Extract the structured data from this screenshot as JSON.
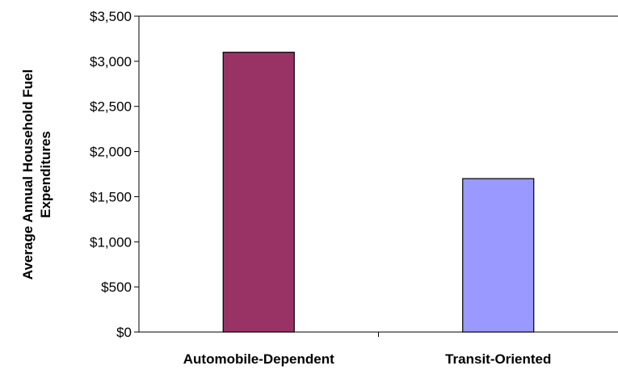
{
  "chart_data": {
    "type": "bar",
    "title": "",
    "xlabel": "",
    "ylabel_lines": [
      "Average Annual Household Fuel",
      "Expenditures"
    ],
    "categories": [
      "Automobile-Dependent",
      "Transit-Oriented"
    ],
    "values": [
      3100,
      1700
    ],
    "bar_colors": [
      "#993366",
      "#9999ff"
    ],
    "ylim": [
      0,
      3500
    ],
    "yticks": [
      0,
      500,
      1000,
      1500,
      2000,
      2500,
      3000,
      3500
    ],
    "ytick_labels": [
      "$0",
      "$500",
      "$1,000",
      "$1,500",
      "$2,000",
      "$2,500",
      "$3,000",
      "$3,500"
    ],
    "grid": false,
    "legend": "none"
  }
}
